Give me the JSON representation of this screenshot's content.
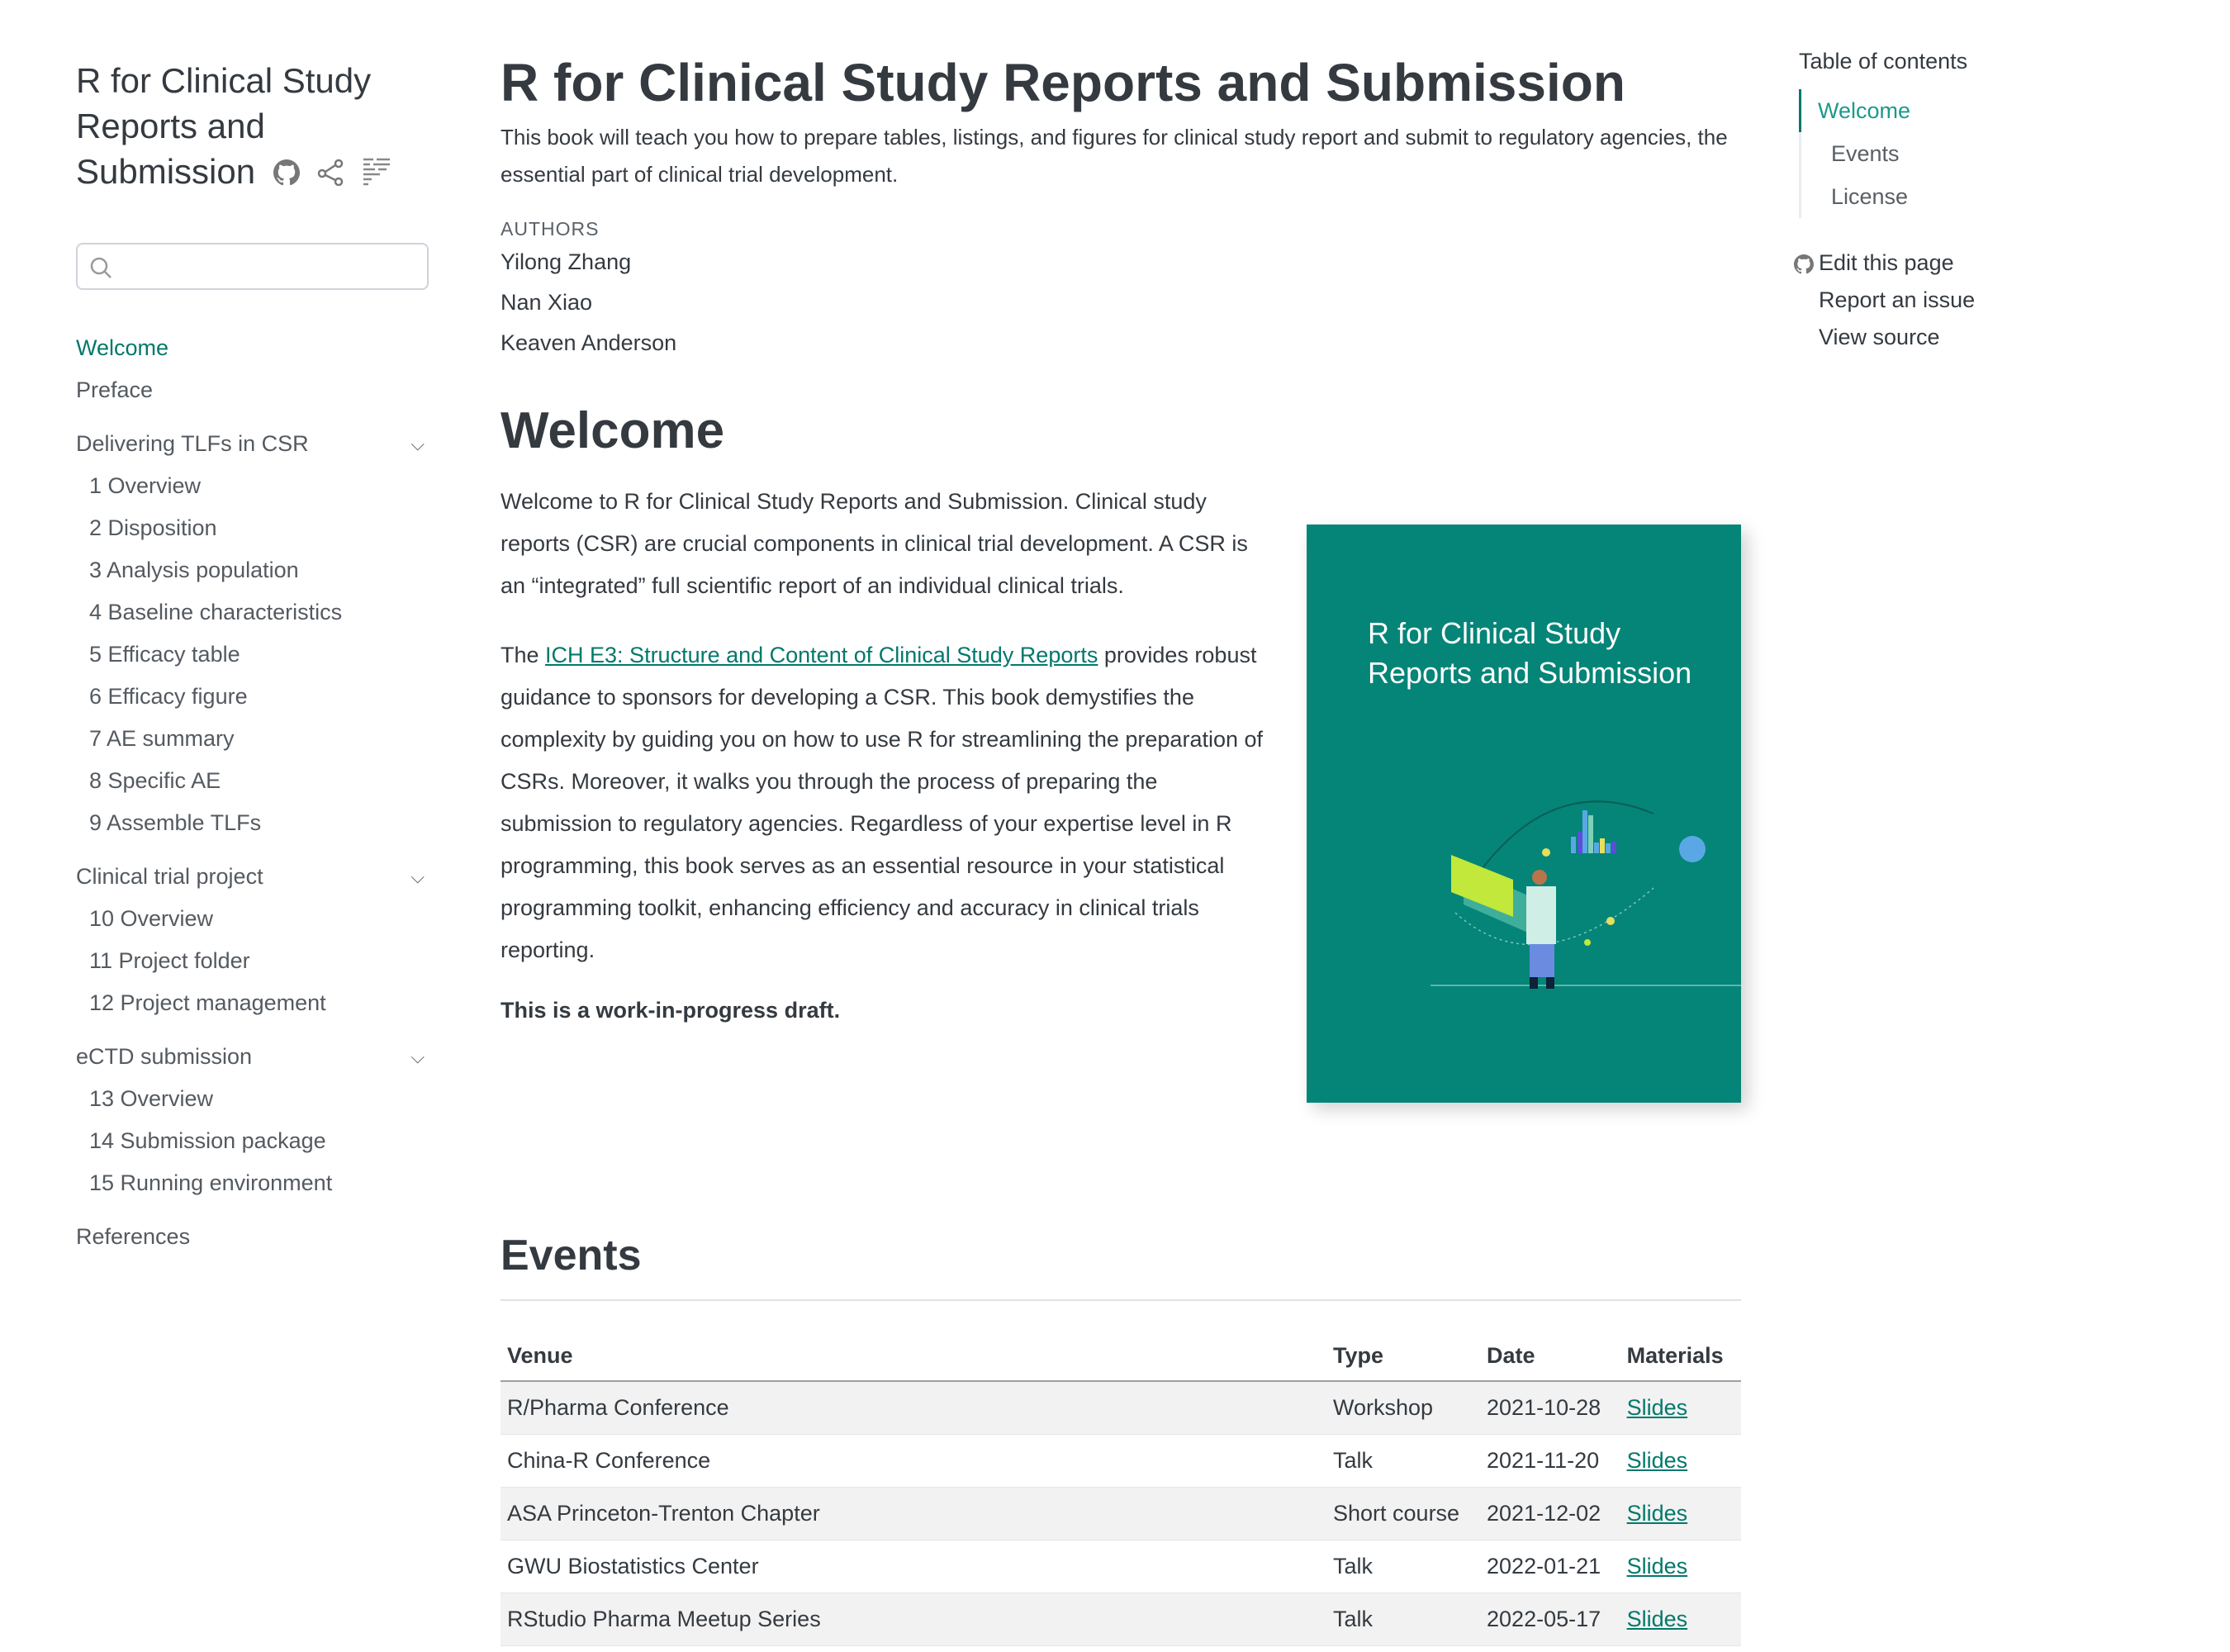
{
  "sidebar": {
    "title": "R for Clinical Study Reports and Submission",
    "icons": [
      "github-icon",
      "share-icon",
      "reader-mode-icon"
    ],
    "search": {
      "placeholder": "",
      "value": ""
    },
    "items": [
      {
        "label": "Welcome",
        "type": "top",
        "active": true
      },
      {
        "label": "Preface",
        "type": "top"
      },
      {
        "label": "Delivering TLFs in CSR",
        "type": "section",
        "expanded": true
      },
      {
        "label": "1  Overview",
        "type": "sub"
      },
      {
        "label": "2  Disposition",
        "type": "sub"
      },
      {
        "label": "3  Analysis population",
        "type": "sub"
      },
      {
        "label": "4  Baseline characteristics",
        "type": "sub"
      },
      {
        "label": "5  Efficacy table",
        "type": "sub"
      },
      {
        "label": "6  Efficacy figure",
        "type": "sub"
      },
      {
        "label": "7  AE summary",
        "type": "sub"
      },
      {
        "label": "8  Specific AE",
        "type": "sub"
      },
      {
        "label": "9  Assemble TLFs",
        "type": "sub"
      },
      {
        "label": "Clinical trial project",
        "type": "section",
        "expanded": true
      },
      {
        "label": "10  Overview",
        "type": "sub"
      },
      {
        "label": "11  Project folder",
        "type": "sub"
      },
      {
        "label": "12  Project management",
        "type": "sub"
      },
      {
        "label": "eCTD submission",
        "type": "section",
        "expanded": true
      },
      {
        "label": "13  Overview",
        "type": "sub"
      },
      {
        "label": "14  Submission package",
        "type": "sub"
      },
      {
        "label": "15  Running environment",
        "type": "sub"
      },
      {
        "label": "References",
        "type": "section"
      }
    ]
  },
  "main": {
    "title": "R for Clinical Study Reports and Submission",
    "subtitle": "This book will teach you how to prepare tables, listings, and figures for clinical study report and submit to regulatory agencies, the essential part of clinical trial development.",
    "authors_label": "AUTHORS",
    "authors": [
      "Yilong Zhang",
      "Nan Xiao",
      "Keaven Anderson"
    ],
    "welcome_heading": "Welcome",
    "para1": "Welcome to R for Clinical Study Reports and Submission. Clinical study reports (CSR) are crucial components in clinical trial development. A CSR is an “integrated” full scientific report of an individual clinical trials.",
    "para2_pre": "The ",
    "para2_link": "ICH E3: Structure and Content of Clinical Study Reports",
    "para2_post": " provides robust guidance to sponsors for developing a CSR. This book demystifies the complexity by guiding you on how to use R for streamlining the preparation of CSRs. Moreover, it walks you through the process of preparing the submission to regulatory agencies. Regardless of your expertise level in R programming, this book serves as an essential resource in your statistical programming toolkit, enhancing efficiency and accuracy in clinical trials reporting.",
    "draft_note": "This is a work-in-progress draft.",
    "cover": {
      "title": "R for Clinical Study Reports and Submission",
      "color": "#048577"
    },
    "events_heading": "Events",
    "events": {
      "columns": [
        "Venue",
        "Type",
        "Date",
        "Materials"
      ],
      "rows": [
        [
          "R/Pharma Conference",
          "Workshop",
          "2021-10-28",
          "Slides"
        ],
        [
          "China-R Conference",
          "Talk",
          "2021-11-20",
          "Slides"
        ],
        [
          "ASA Princeton-Trenton Chapter",
          "Short course",
          "2021-12-02",
          "Slides"
        ],
        [
          "GWU Biostatistics Center",
          "Talk",
          "2022-01-21",
          "Slides"
        ],
        [
          "RStudio Pharma Meetup Series",
          "Talk",
          "2022-05-17",
          "Slides"
        ]
      ]
    }
  },
  "toc": {
    "title": "Table of contents",
    "items": [
      {
        "label": "Welcome",
        "active": true,
        "level": 1
      },
      {
        "label": "Events",
        "level": 2
      },
      {
        "label": "License",
        "level": 2
      }
    ],
    "tools": [
      "Edit this page",
      "Report an issue",
      "View source"
    ]
  },
  "colors": {
    "accent": "#02786b",
    "cover": "#048577"
  }
}
